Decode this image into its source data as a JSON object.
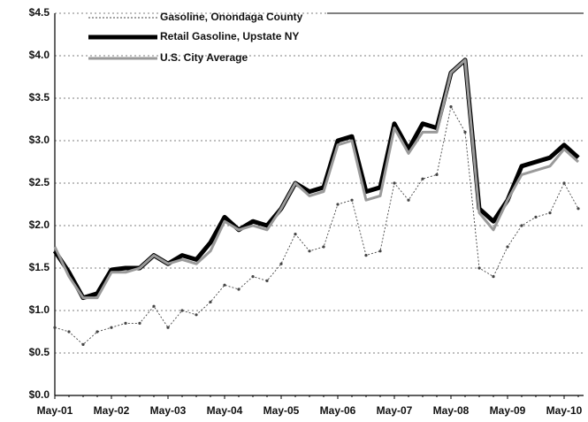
{
  "chart_data": {
    "type": "line",
    "categories": [
      "May-01",
      null,
      null,
      null,
      "May-02",
      null,
      null,
      null,
      "May-03",
      null,
      null,
      null,
      "May-04",
      null,
      null,
      null,
      "May-05",
      null,
      null,
      null,
      "May-06",
      null,
      null,
      null,
      "May-07",
      null,
      null,
      null,
      "May-08",
      null,
      null,
      null,
      "May-09",
      null,
      null,
      null,
      "May-10",
      null
    ],
    "series": [
      {
        "name": "Gasoline, Onondaga County",
        "color": "#444444",
        "values": [
          0.8,
          0.75,
          0.6,
          0.75,
          0.8,
          0.85,
          0.85,
          1.05,
          0.8,
          1.0,
          0.95,
          1.1,
          1.3,
          1.25,
          1.4,
          1.35,
          1.55,
          1.9,
          1.7,
          1.75,
          2.25,
          2.3,
          1.65,
          1.7,
          2.5,
          2.3,
          2.55,
          2.6,
          3.4,
          3.1,
          1.5,
          1.4,
          1.75,
          2.0,
          2.1,
          2.15,
          2.5,
          2.2
        ]
      },
      {
        "name": "Retail Gasoline, Upstate NY",
        "color": "#000000",
        "values": [
          1.7,
          1.45,
          1.15,
          1.2,
          1.48,
          1.5,
          1.5,
          1.65,
          1.55,
          1.65,
          1.6,
          1.8,
          2.1,
          1.95,
          2.05,
          2.0,
          2.2,
          2.5,
          2.4,
          2.45,
          3.0,
          3.05,
          2.4,
          2.45,
          3.2,
          2.9,
          3.2,
          3.15,
          3.8,
          3.95,
          2.2,
          2.05,
          2.3,
          2.7,
          2.75,
          2.8,
          2.95,
          2.8
        ]
      },
      {
        "name": "U.S. City Average",
        "color": "#9a9a9a",
        "values": [
          1.75,
          1.4,
          1.15,
          1.15,
          1.45,
          1.45,
          1.5,
          1.65,
          1.55,
          1.6,
          1.55,
          1.7,
          2.05,
          1.95,
          2.0,
          1.95,
          2.2,
          2.5,
          2.35,
          2.4,
          2.95,
          3.0,
          2.3,
          2.35,
          3.15,
          2.85,
          3.1,
          3.1,
          3.8,
          3.95,
          2.15,
          1.95,
          2.3,
          2.6,
          2.65,
          2.7,
          2.9,
          2.75
        ]
      }
    ],
    "ylim": [
      0,
      4.5
    ],
    "yticks": [
      {
        "value": 0,
        "label": "$0.0"
      },
      {
        "value": 0.5,
        "label": "$0.5"
      },
      {
        "value": 1,
        "label": "$1.0"
      },
      {
        "value": 1.5,
        "label": "$1.5"
      },
      {
        "value": 2,
        "label": "$2.0"
      },
      {
        "value": 2.5,
        "label": "$2.5"
      },
      {
        "value": 3,
        "label": "$3.0"
      },
      {
        "value": 3.5,
        "label": "$3.5"
      },
      {
        "value": 4,
        "label": "$4.0"
      },
      {
        "value": 4.5,
        "label": "$4.5"
      }
    ],
    "grid": true
  }
}
